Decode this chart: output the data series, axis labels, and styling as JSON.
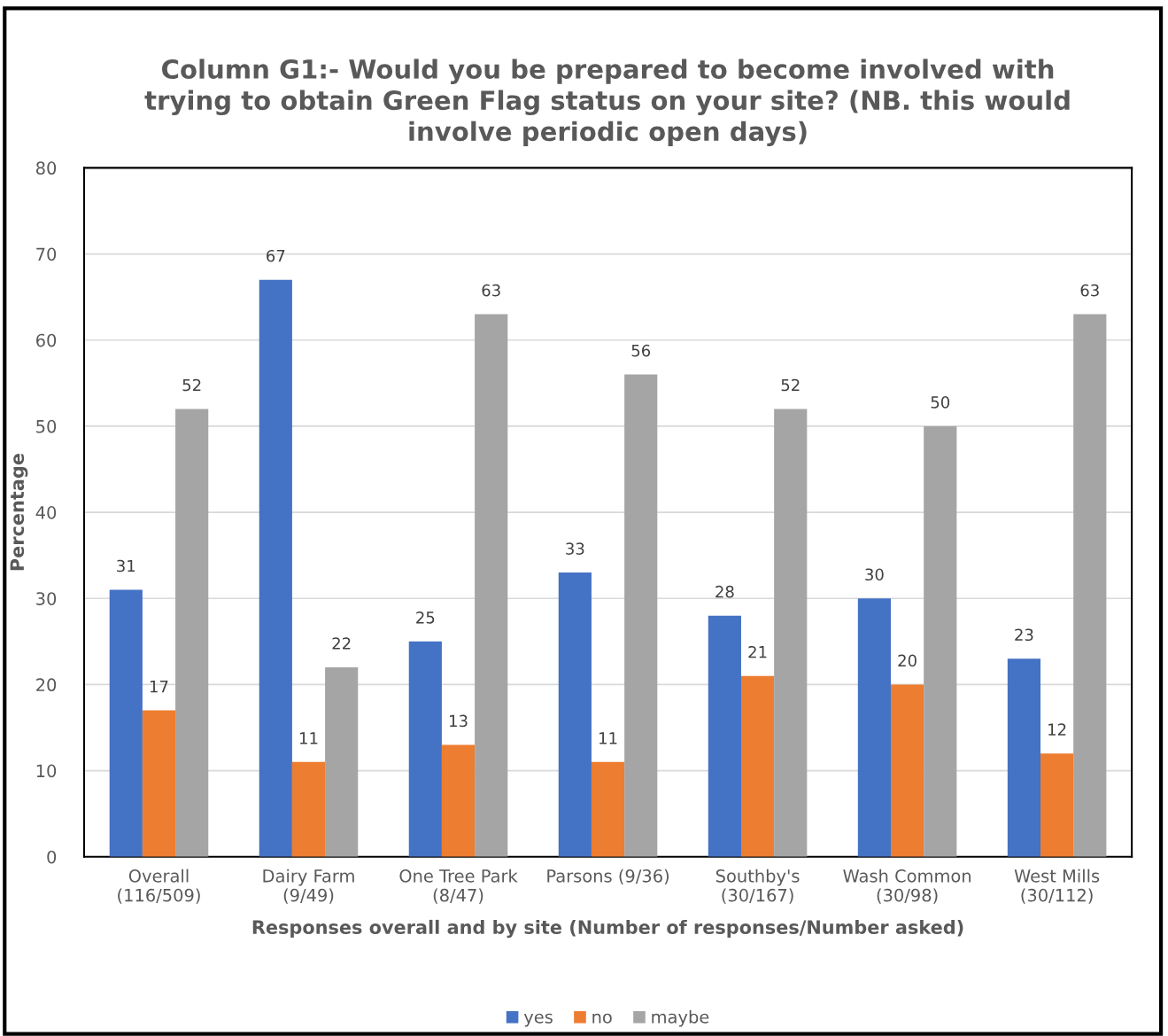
{
  "chart_data": {
    "type": "bar",
    "title": "Column G1:- Would you be prepared to become involved with\ntrying to obtain Green Flag status on your site? (NB. this would\ninvolve periodic open days)",
    "xlabel": "Responses overall and by site (Number of responses/Number asked)",
    "ylabel": "Percentage",
    "categories": [
      "Overall\n(116/509)",
      "Dairy Farm\n(9/49)",
      "One Tree Park\n(8/47)",
      "Parsons (9/36)",
      "Southby's\n(30/167)",
      "Wash Common\n(30/98)",
      "West Mills\n(30/112)"
    ],
    "series": [
      {
        "name": "yes",
        "color": "#4472c4",
        "values": [
          31,
          67,
          25,
          33,
          28,
          30,
          23
        ]
      },
      {
        "name": "no",
        "color": "#ed7d31",
        "values": [
          17,
          11,
          13,
          11,
          21,
          20,
          12
        ]
      },
      {
        "name": "maybe",
        "color": "#a5a5a5",
        "values": [
          52,
          22,
          63,
          56,
          52,
          50,
          63
        ]
      }
    ],
    "ylim": [
      0,
      80
    ],
    "yticks": [
      0,
      10,
      20,
      30,
      40,
      50,
      60,
      70,
      80
    ],
    "grid": "y",
    "legend": "bottom",
    "data_labels": true
  }
}
